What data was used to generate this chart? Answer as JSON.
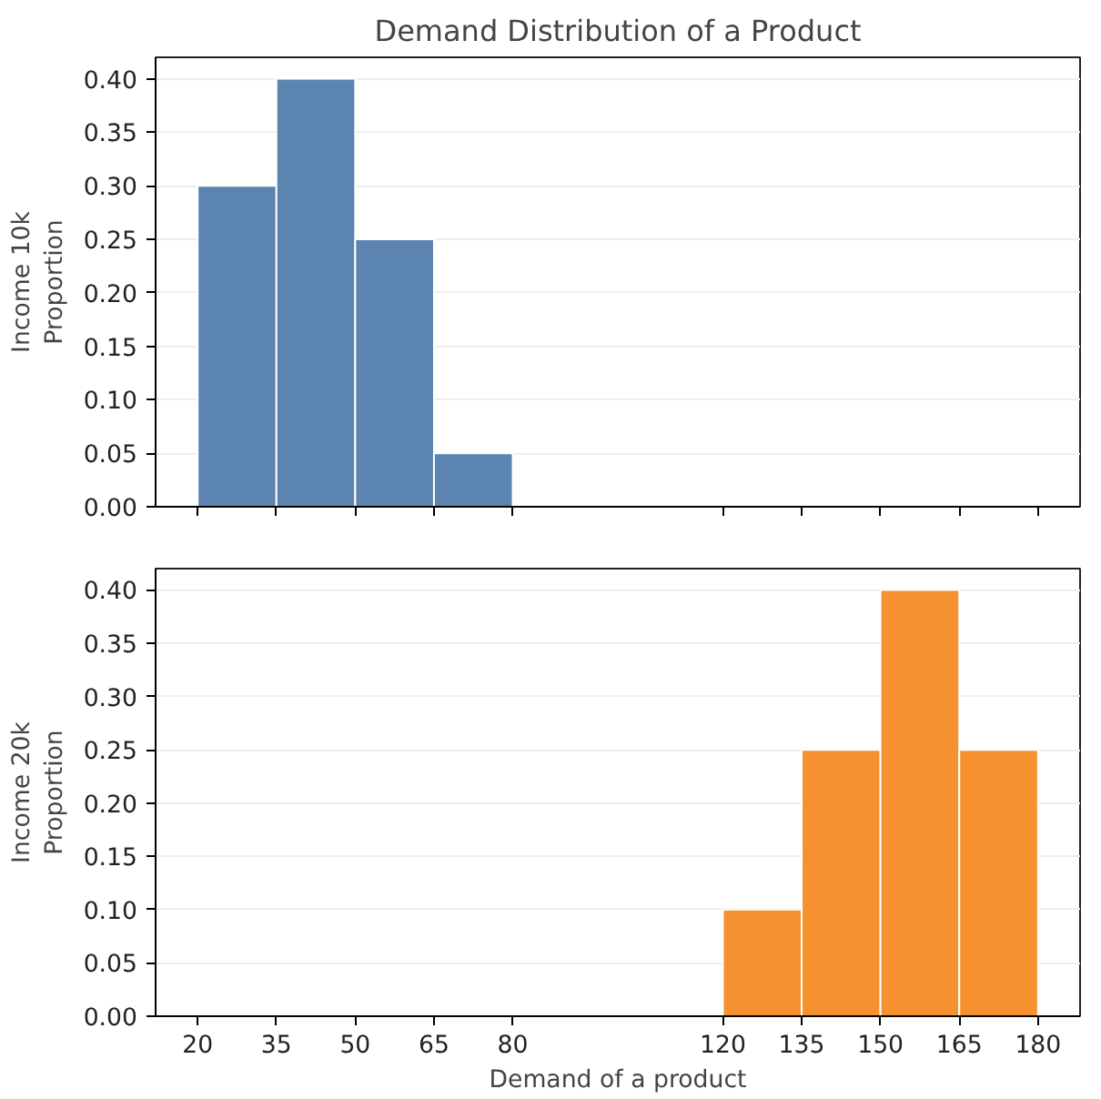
{
  "chart_data": [
    {
      "type": "histogram",
      "title": "Demand Distribution of a Product",
      "ylabel": "Income 10k\nProportion",
      "bins": [
        20,
        35,
        50,
        65,
        80
      ],
      "values": [
        0.3,
        0.4,
        0.25,
        0.05
      ],
      "color": "#5b84b1",
      "xlim": [
        12,
        188
      ],
      "xticks": [
        20,
        35,
        50,
        65,
        80,
        120,
        135,
        150,
        165,
        180
      ],
      "ylim": [
        0,
        0.42
      ],
      "yticks": [
        {
          "value": 0,
          "label": "0.00"
        },
        {
          "value": 0.05,
          "label": "0.05"
        },
        {
          "value": 0.1,
          "label": "0.10"
        },
        {
          "value": 0.15,
          "label": "0.15"
        },
        {
          "value": 0.2,
          "label": "0.20"
        },
        {
          "value": 0.25,
          "label": "0.25"
        },
        {
          "value": 0.3,
          "label": "0.30"
        },
        {
          "value": 0.35,
          "label": "0.35"
        },
        {
          "value": 0.4,
          "label": "0.40"
        }
      ],
      "grid": "y",
      "tick_labels": "y"
    },
    {
      "type": "histogram",
      "xlabel": "Demand of a product",
      "ylabel": "Income 20k\nProportion",
      "bins": [
        120,
        135,
        150,
        165,
        180
      ],
      "values": [
        0.1,
        0.25,
        0.4,
        0.25
      ],
      "color": "#f5912e",
      "xlim": [
        12,
        188
      ],
      "xticks": [
        20,
        35,
        50,
        65,
        80,
        120,
        135,
        150,
        165,
        180
      ],
      "ylim": [
        0,
        0.42
      ],
      "yticks": [
        {
          "value": 0,
          "label": "0.00"
        },
        {
          "value": 0.05,
          "label": "0.05"
        },
        {
          "value": 0.1,
          "label": "0.10"
        },
        {
          "value": 0.15,
          "label": "0.15"
        },
        {
          "value": 0.2,
          "label": "0.20"
        },
        {
          "value": 0.25,
          "label": "0.25"
        },
        {
          "value": 0.3,
          "label": "0.30"
        },
        {
          "value": 0.35,
          "label": "0.35"
        },
        {
          "value": 0.4,
          "label": "0.40"
        }
      ],
      "grid": "y"
    }
  ]
}
